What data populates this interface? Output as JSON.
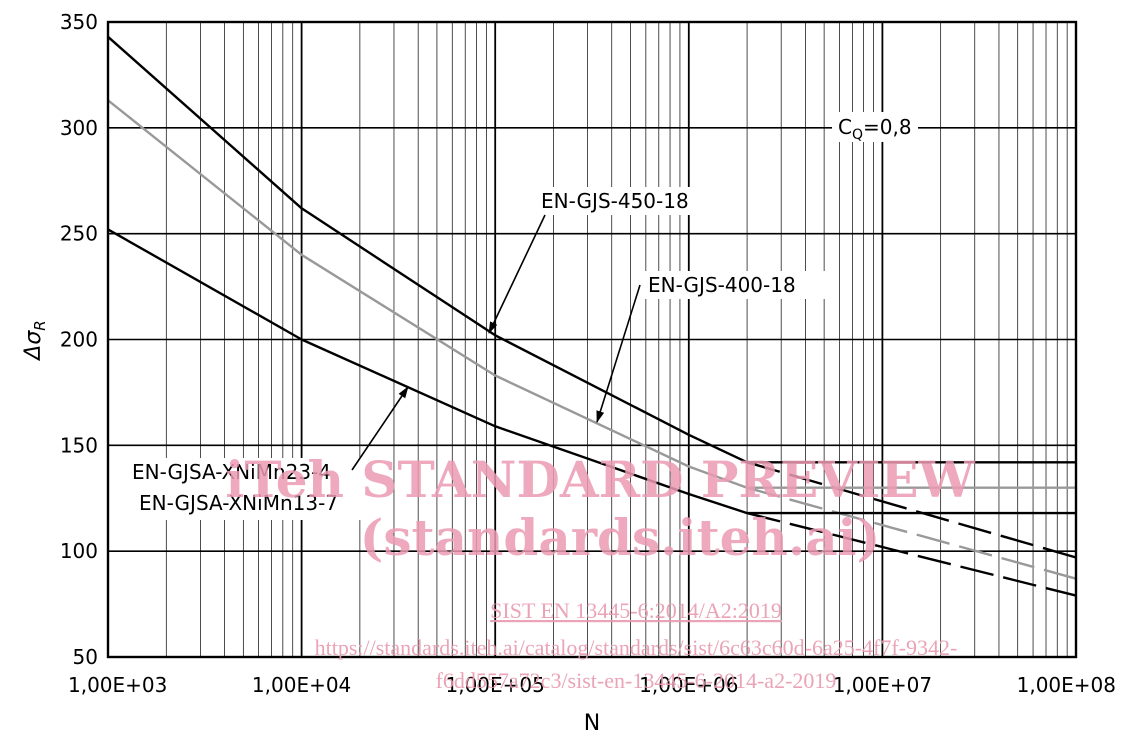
{
  "chart_data": {
    "type": "line",
    "title": "",
    "xlabel": "N",
    "ylabel": "Δσ",
    "ylabel_subscript": "R",
    "x_scale": "log",
    "xlim": [
      1000,
      100000000
    ],
    "ylim": [
      50,
      350
    ],
    "x_tick_values": [
      1000,
      10000,
      100000,
      1000000,
      10000000,
      100000000
    ],
    "x_tick_labels": [
      "1,00E+03",
      "1,00E+04",
      "1,00E+05",
      "1,00E+06",
      "1,00E+07",
      "1,00E+08"
    ],
    "y_ticks": [
      50,
      100,
      150,
      200,
      250,
      300,
      350
    ],
    "grid": true,
    "annotations": {
      "cq_prefix": "C",
      "cq_sub": "Q",
      "cq_value": "=0,8",
      "gjs450": "EN-GJS-450-18",
      "gjs400": "EN-GJS-400-18",
      "gjsa1": "EN-GJSA-XNiMn23-4",
      "gjsa2": "EN-GJSA-XNiMn13-7"
    },
    "series": [
      {
        "color": "#000000",
        "solid": [
          [
            1000,
            343
          ],
          [
            10000,
            262
          ],
          [
            100000,
            202
          ],
          [
            1000000,
            155
          ],
          [
            2000000,
            142
          ],
          [
            100000000,
            142
          ]
        ],
        "dashed": [
          [
            2000000,
            142
          ],
          [
            100000000,
            97
          ]
        ]
      },
      {
        "color": "#999999",
        "solid": [
          [
            1000,
            313
          ],
          [
            10000,
            240
          ],
          [
            100000,
            183
          ],
          [
            1000000,
            140
          ],
          [
            2000000,
            130
          ],
          [
            100000000,
            130
          ]
        ],
        "dashed": [
          [
            2000000,
            130
          ],
          [
            100000000,
            87
          ]
        ]
      },
      {
        "color": "#000000",
        "solid": [
          [
            1000,
            252
          ],
          [
            10000,
            200
          ],
          [
            100000,
            159
          ],
          [
            1000000,
            127
          ],
          [
            2000000,
            118
          ],
          [
            100000000,
            118
          ]
        ],
        "dashed": [
          [
            2000000,
            118
          ],
          [
            100000000,
            79
          ]
        ]
      }
    ]
  },
  "watermark": {
    "line1": "iTeh STANDARD PREVIEW",
    "line2": "(standards.iteh.ai)",
    "line3": "SIST EN 13445-6:2014/A2:2019",
    "line4": "https://standards.iteh.ai/catalog/standards/sist/6c63c60d-6a25-4f7f-9342-",
    "line5": "f6dd557a72c3/sist-en-13445-6-2014-a2-2019"
  },
  "colors": {
    "watermark": "#ec9bb3",
    "gray_curve": "#999999"
  }
}
